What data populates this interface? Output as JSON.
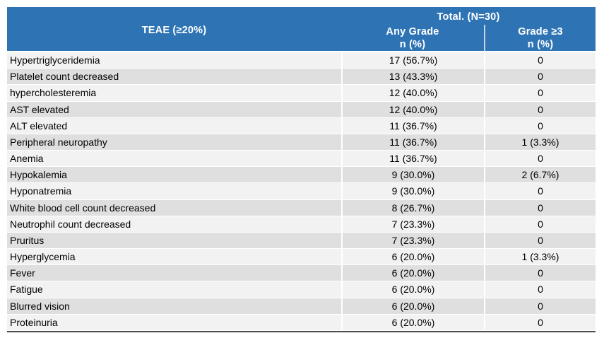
{
  "table": {
    "colors": {
      "header_bg": "#2E74B5",
      "header_text": "#FFFFFF",
      "row_light": "#F2F2F2",
      "row_dark": "#DFDFDF",
      "header_divider": "#C7D5E8",
      "gridline": "#FFFFFF",
      "bottom_border": "#4B4B4B",
      "body_text": "#000000"
    },
    "header": {
      "teae_label": "TEAE (≥20%)",
      "total_label": "Total. (N=30)",
      "columns": [
        {
          "label": "Any Grade",
          "sub_label": "n (%)"
        },
        {
          "label": "Grade ≥3",
          "sub_label": "n (%)"
        }
      ]
    },
    "rows": [
      {
        "teae": "Hypertriglyceridemia",
        "any_grade": "17 (56.7%)",
        "grade3": "0"
      },
      {
        "teae": "Platelet count decreased",
        "any_grade": "13 (43.3%)",
        "grade3": "0"
      },
      {
        "teae": "hypercholesteremia",
        "any_grade": "12 (40.0%)",
        "grade3": "0"
      },
      {
        "teae": "AST elevated",
        "any_grade": "12 (40.0%)",
        "grade3": "0"
      },
      {
        "teae": "ALT elevated",
        "any_grade": "11 (36.7%)",
        "grade3": "0"
      },
      {
        "teae": "Peripheral neuropathy",
        "any_grade": "11 (36.7%)",
        "grade3": "1 (3.3%)"
      },
      {
        "teae": "Anemia",
        "any_grade": "11 (36.7%)",
        "grade3": "0"
      },
      {
        "teae": "Hypokalemia",
        "any_grade": "9 (30.0%)",
        "grade3": "2 (6.7%)"
      },
      {
        "teae": "Hyponatremia",
        "any_grade": "9 (30.0%)",
        "grade3": "0"
      },
      {
        "teae": "White blood cell count decreased",
        "any_grade": "8 (26.7%)",
        "grade3": "0"
      },
      {
        "teae": "Neutrophil count decreased",
        "any_grade": "7 (23.3%)",
        "grade3": "0"
      },
      {
        "teae": "Pruritus",
        "any_grade": "7 (23.3%)",
        "grade3": "0"
      },
      {
        "teae": "Hyperglycemia",
        "any_grade": "6 (20.0%)",
        "grade3": "1 (3.3%)"
      },
      {
        "teae": "Fever",
        "any_grade": "6 (20.0%)",
        "grade3": "0"
      },
      {
        "teae": "Fatigue",
        "any_grade": "6 (20.0%)",
        "grade3": "0"
      },
      {
        "teae": "Blurred vision",
        "any_grade": "6 (20.0%)",
        "grade3": "0"
      },
      {
        "teae": "Proteinuria",
        "any_grade": "6 (20.0%)",
        "grade3": "0"
      }
    ]
  }
}
